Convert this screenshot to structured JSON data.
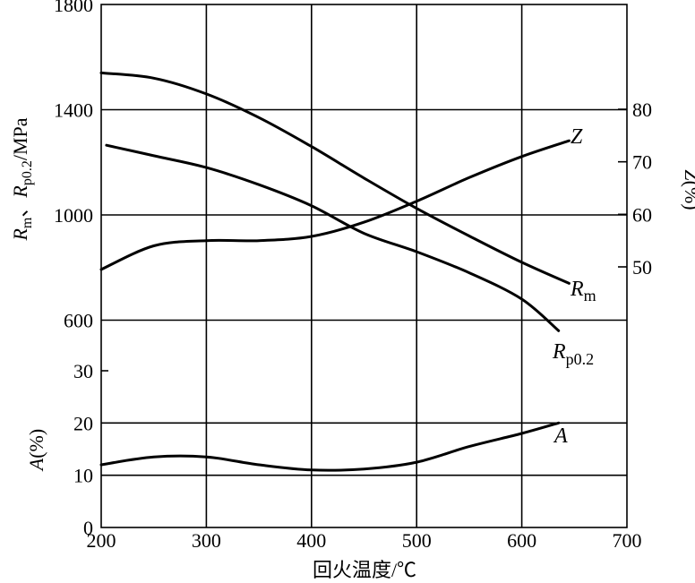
{
  "chart_data": {
    "type": "line",
    "xlabel": "回火温度/℃",
    "x_ticks": [
      "200",
      "300",
      "400",
      "500",
      "600",
      "700"
    ],
    "xlim": [
      200,
      700
    ],
    "y_left_top": {
      "label": "Rm、Rp0.2/MPa",
      "ticks": [
        "600",
        "1000",
        "1400",
        "1800"
      ],
      "ylim": [
        600,
        1800
      ]
    },
    "y_left_bottom": {
      "label": "A(%)",
      "ticks": [
        "0",
        "10",
        "20",
        "30"
      ],
      "ylim": [
        0,
        40
      ]
    },
    "y_right": {
      "label": "Z(%)",
      "ticks": [
        "50",
        "60",
        "70",
        "80"
      ],
      "ylim": [
        50,
        80
      ]
    },
    "grid": true,
    "series": [
      {
        "name": "Rm",
        "axis": "y_left_top",
        "x": [
          200,
          250,
          300,
          350,
          400,
          450,
          500,
          550,
          600,
          645
        ],
        "y": [
          1540,
          1520,
          1460,
          1370,
          1260,
          1140,
          1025,
          920,
          820,
          740
        ]
      },
      {
        "name": "Rp0.2",
        "axis": "y_left_top",
        "x": [
          205,
          250,
          300,
          350,
          400,
          450,
          500,
          550,
          600,
          635
        ],
        "y": [
          1265,
          1225,
          1180,
          1115,
          1035,
          930,
          860,
          780,
          680,
          560
        ]
      },
      {
        "name": "Z",
        "axis": "y_right",
        "x": [
          200,
          250,
          300,
          350,
          400,
          450,
          500,
          550,
          600,
          645
        ],
        "y": [
          49.5,
          54,
          55,
          55,
          55.8,
          58.5,
          62.5,
          67,
          71,
          74
        ]
      },
      {
        "name": "A",
        "axis": "y_left_bottom",
        "x": [
          200,
          250,
          300,
          350,
          400,
          450,
          500,
          550,
          600,
          635
        ],
        "y": [
          12,
          13.5,
          13.5,
          12,
          11,
          11.2,
          12.5,
          15.5,
          18,
          20
        ]
      }
    ]
  }
}
